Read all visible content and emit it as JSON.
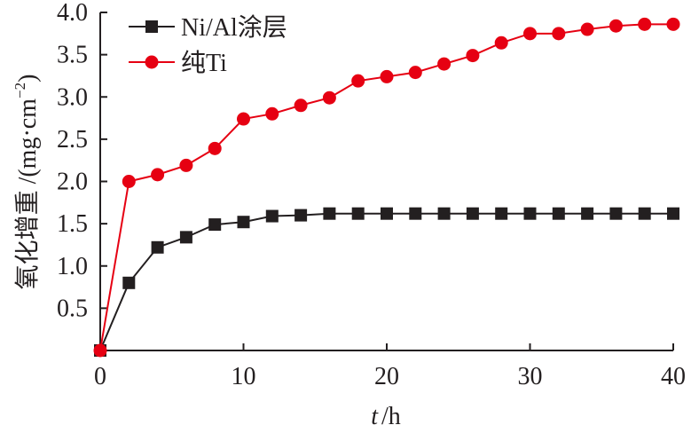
{
  "chart_data": {
    "type": "line",
    "title": "",
    "xlabel_italic": "t",
    "xlabel_unit": "/h",
    "ylabel": "氧化增重 /(mg·cm",
    "ylabel_sup": "−2",
    "ylabel_close": ")",
    "xlim": [
      0,
      40
    ],
    "ylim": [
      0,
      4.0
    ],
    "xticks": [
      "0",
      "10",
      "20",
      "30",
      "40"
    ],
    "xtick_values": [
      0,
      10,
      20,
      30,
      40
    ],
    "yticks": [
      "0.5",
      "1.0",
      "1.5",
      "2.0",
      "2.5",
      "3.0",
      "3.5",
      "4.0"
    ],
    "ytick_values": [
      0.5,
      1.0,
      1.5,
      2.0,
      2.5,
      3.0,
      3.5,
      4.0
    ],
    "grid": false,
    "legend_position": "top-left",
    "x": [
      0,
      2,
      4,
      6,
      8,
      10,
      12,
      14,
      16,
      18,
      20,
      22,
      24,
      26,
      28,
      30,
      32,
      34,
      36,
      38,
      40
    ],
    "series": [
      {
        "name": "Ni/Al涂层",
        "color": "#231f20",
        "marker": "square",
        "values": [
          0,
          0.8,
          1.22,
          1.34,
          1.49,
          1.52,
          1.59,
          1.6,
          1.62,
          1.62,
          1.62,
          1.62,
          1.62,
          1.62,
          1.62,
          1.62,
          1.62,
          1.62,
          1.62,
          1.62,
          1.62
        ]
      },
      {
        "name": "纯Ti",
        "color": "#e60012",
        "marker": "circle",
        "values": [
          0,
          2.0,
          2.08,
          2.19,
          2.39,
          2.74,
          2.8,
          2.9,
          2.99,
          3.19,
          3.24,
          3.29,
          3.39,
          3.49,
          3.64,
          3.75,
          3.75,
          3.8,
          3.84,
          3.86,
          3.86
        ]
      }
    ]
  }
}
